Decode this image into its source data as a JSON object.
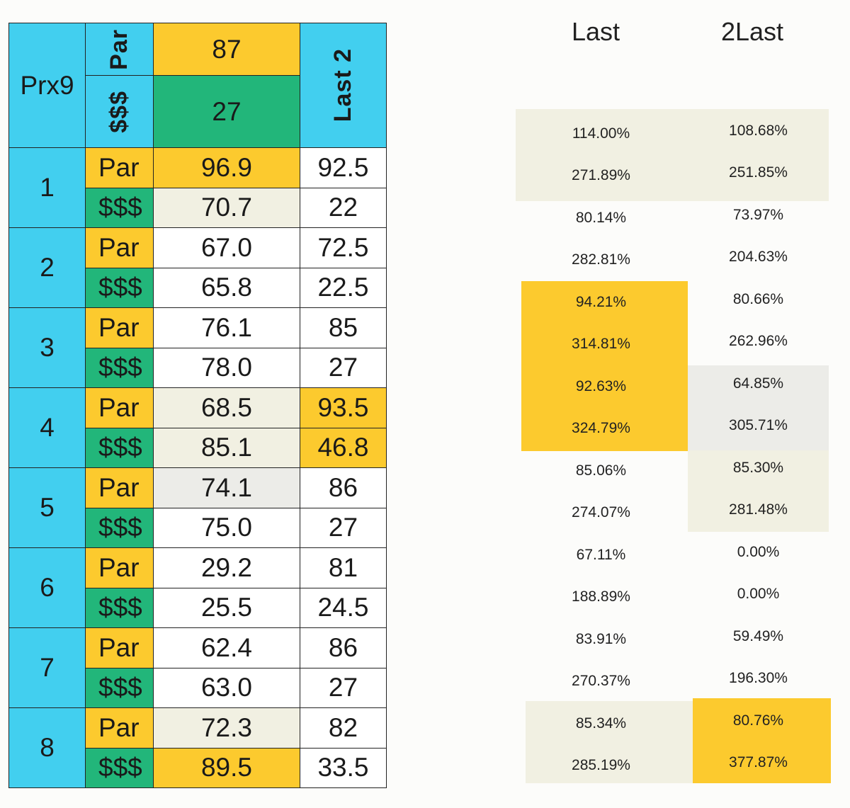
{
  "header": {
    "prx_title": "Prx9",
    "par_label": "Par",
    "money_label": "$$$",
    "par_value": "87",
    "money_value": "27",
    "last2_label": "Last 2"
  },
  "holes": [
    {
      "hole": "1",
      "par_label": "Par",
      "money_label": "$$$",
      "par_value": "96.9",
      "money_value": "70.7",
      "par_last2": "92.5",
      "money_last2": "22"
    },
    {
      "hole": "2",
      "par_label": "Par",
      "money_label": "$$$",
      "par_value": "67.0",
      "money_value": "65.8",
      "par_last2": "72.5",
      "money_last2": "22.5"
    },
    {
      "hole": "3",
      "par_label": "Par",
      "money_label": "$$$",
      "par_value": "76.1",
      "money_value": "78.0",
      "par_last2": "85",
      "money_last2": "27"
    },
    {
      "hole": "4",
      "par_label": "Par",
      "money_label": "$$$",
      "par_value": "68.5",
      "money_value": "85.1",
      "par_last2": "93.5",
      "money_last2": "46.8"
    },
    {
      "hole": "5",
      "par_label": "Par",
      "money_label": "$$$",
      "par_value": "74.1",
      "money_value": "75.0",
      "par_last2": "86",
      "money_last2": "27"
    },
    {
      "hole": "6",
      "par_label": "Par",
      "money_label": "$$$",
      "par_value": "29.2",
      "money_value": "25.5",
      "par_last2": "81",
      "money_last2": "24.5"
    },
    {
      "hole": "7",
      "par_label": "Par",
      "money_label": "$$$",
      "par_value": "62.4",
      "money_value": "63.0",
      "par_last2": "86",
      "money_last2": "27"
    },
    {
      "hole": "8",
      "par_label": "Par",
      "money_label": "$$$",
      "par_value": "72.3",
      "money_value": "89.5",
      "par_last2": "82",
      "money_last2": "33.5"
    }
  ],
  "percent_table": {
    "col_last": "Last",
    "col_2last": "2Last",
    "rows": [
      {
        "last": "114.00%",
        "two_last": "108.68%"
      },
      {
        "last": "271.89%",
        "two_last": "251.85%"
      },
      {
        "last": "80.14%",
        "two_last": "73.97%"
      },
      {
        "last": "282.81%",
        "two_last": "204.63%"
      },
      {
        "last": "94.21%",
        "two_last": "80.66%"
      },
      {
        "last": "314.81%",
        "two_last": "262.96%"
      },
      {
        "last": "92.63%",
        "two_last": "64.85%"
      },
      {
        "last": "324.79%",
        "two_last": "305.71%"
      },
      {
        "last": "85.06%",
        "two_last": "85.30%"
      },
      {
        "last": "274.07%",
        "two_last": "281.48%"
      },
      {
        "last": "67.11%",
        "two_last": "0.00%"
      },
      {
        "last": "188.89%",
        "two_last": "0.00%"
      },
      {
        "last": "83.91%",
        "two_last": "59.49%"
      },
      {
        "last": "270.37%",
        "two_last": "196.30%"
      },
      {
        "last": "85.34%",
        "two_last": "80.76%"
      },
      {
        "last": "285.19%",
        "two_last": "377.87%"
      }
    ]
  },
  "colors": {
    "blue": "#42cfef",
    "yellow": "#fcca2e",
    "green": "#22b67a",
    "cream": "#f1f0e2",
    "grey": "#ecece8"
  }
}
